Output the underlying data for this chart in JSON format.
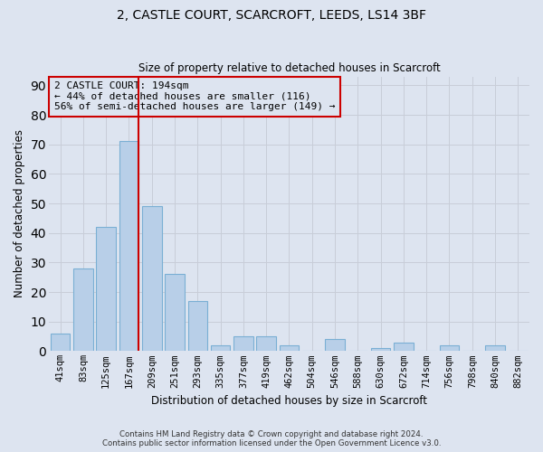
{
  "title_line1": "2, CASTLE COURT, SCARCROFT, LEEDS, LS14 3BF",
  "title_line2": "Size of property relative to detached houses in Scarcroft",
  "xlabel": "Distribution of detached houses by size in Scarcroft",
  "ylabel": "Number of detached properties",
  "footnote1": "Contains HM Land Registry data © Crown copyright and database right 2024.",
  "footnote2": "Contains public sector information licensed under the Open Government Licence v3.0.",
  "categories": [
    "41sqm",
    "83sqm",
    "125sqm",
    "167sqm",
    "209sqm",
    "251sqm",
    "293sqm",
    "335sqm",
    "377sqm",
    "419sqm",
    "462sqm",
    "504sqm",
    "546sqm",
    "588sqm",
    "630sqm",
    "672sqm",
    "714sqm",
    "756sqm",
    "798sqm",
    "840sqm",
    "882sqm"
  ],
  "values": [
    6,
    28,
    42,
    71,
    49,
    26,
    17,
    2,
    5,
    5,
    2,
    0,
    4,
    0,
    1,
    3,
    0,
    2,
    0,
    2,
    0
  ],
  "bar_color": "#b8cfe8",
  "bar_edge_color": "#7aafd4",
  "grid_color": "#c8cdd8",
  "bg_color": "#dde4f0",
  "annotation_box_color": "#cc0000",
  "property_label": "2 CASTLE COURT: 194sqm",
  "annotation_line1": "← 44% of detached houses are smaller (116)",
  "annotation_line2": "56% of semi-detached houses are larger (149) →",
  "red_line_x": 3.42,
  "ylim": [
    0,
    93
  ],
  "yticks": [
    0,
    10,
    20,
    30,
    40,
    50,
    60,
    70,
    80,
    90
  ]
}
